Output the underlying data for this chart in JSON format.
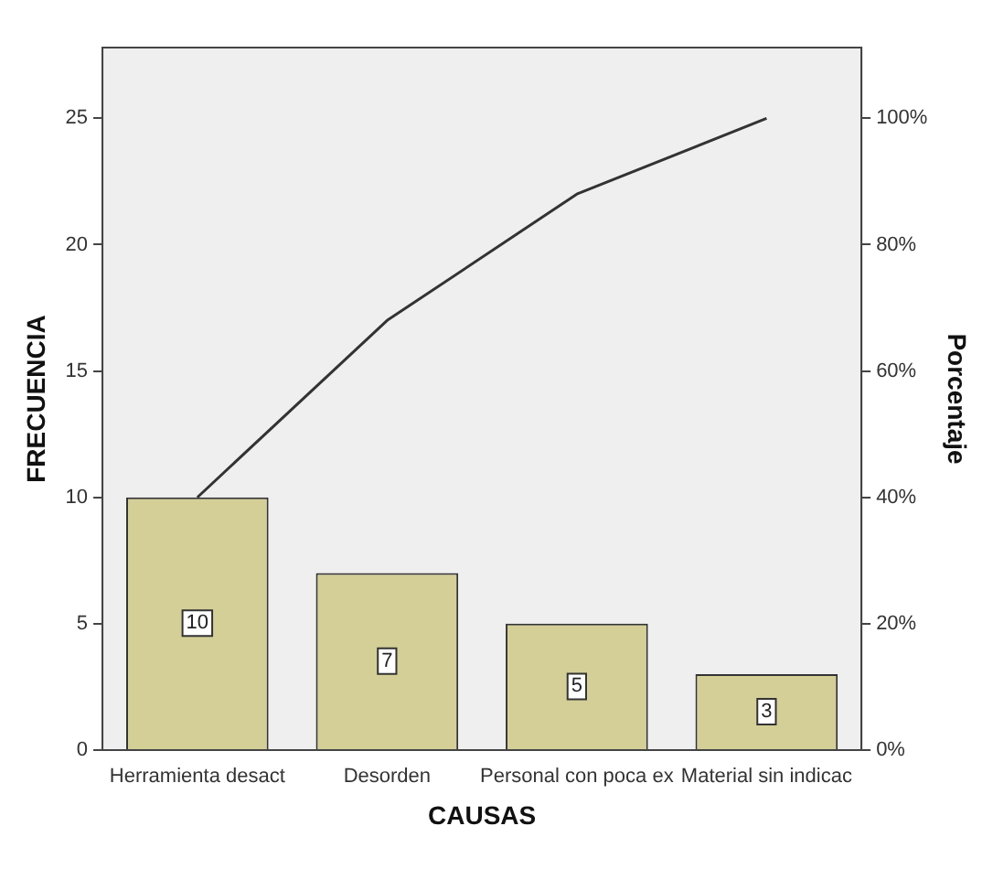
{
  "chart_data": {
    "type": "bar",
    "xlabel": "CAUSAS",
    "ylabel": "FRECUENCIA",
    "y2label": "Porcentaje",
    "categories": [
      "Herramienta desact",
      "Desorden",
      "Personal con poca ex",
      "Material sin indicac"
    ],
    "series": [
      {
        "color": "#d3cf97",
        "values": [
          10,
          7,
          5,
          3
        ],
        "value_labels": [
          "10",
          "7",
          "5",
          "3"
        ]
      },
      {
        "type": "line",
        "axis": "y2",
        "color": "#333333",
        "values": [
          40,
          68,
          88,
          100
        ]
      }
    ],
    "ylim": [
      0,
      27.8
    ],
    "yticks": [
      0,
      5,
      10,
      15,
      20,
      25
    ],
    "y2lim": [
      0,
      111.2
    ],
    "y2ticks": [
      {
        "value": 0,
        "label": "0%"
      },
      {
        "value": 20,
        "label": "20%"
      },
      {
        "value": 40,
        "label": "40%"
      },
      {
        "value": 60,
        "label": "60%"
      },
      {
        "value": 80,
        "label": "80%"
      },
      {
        "value": 100,
        "label": "100%"
      }
    ],
    "grid": false,
    "legend": false,
    "marker": "none"
  }
}
